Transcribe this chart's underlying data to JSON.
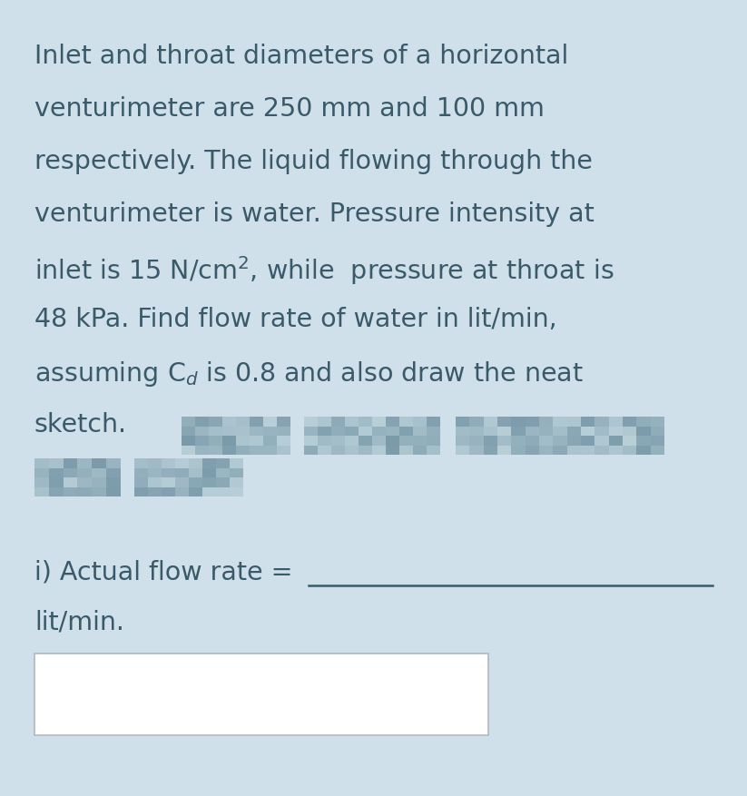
{
  "background_color": "#cfe0ea",
  "text_color": "#3a5a6a",
  "font_size_main": 20.5,
  "main_text_lines": [
    "Inlet and throat diameters of a horizontal",
    "venturimeter are 250 mm and 100 mm",
    "respectively. The liquid flowing through the",
    "venturimeter is water. Pressure intensity at",
    "inlet is 15 N/cm², while  pressure at throat is",
    "48 kPa. Find flow rate of water in lit/min,",
    "assuming C₂ is 0.8 and also draw the neat",
    "sketch."
  ],
  "answer_line1": "i) Actual flow rate = ",
  "answer_line2": "lit/min.",
  "box_color": "#ffffff",
  "box_edge_color": "#b0b8c0",
  "blurred_block_color_light": "#b8cfd8",
  "blurred_block_color_dark": "#7a9aaa"
}
